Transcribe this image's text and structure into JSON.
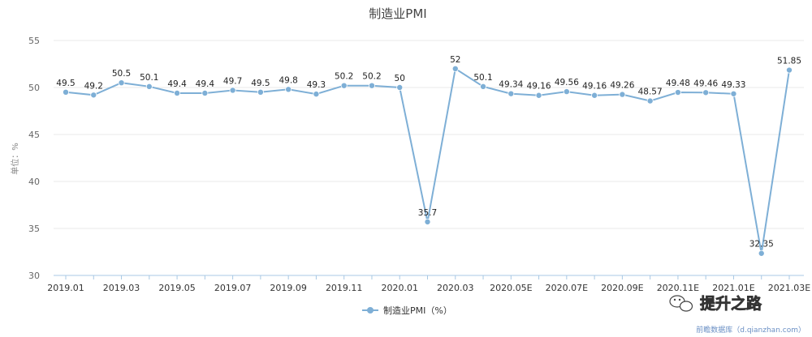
{
  "chart_data": {
    "type": "line",
    "title": "制造业PMI",
    "ylabel": "单位：%",
    "ylim": [
      30,
      55
    ],
    "yticks": [
      30,
      35,
      40,
      45,
      50,
      55
    ],
    "grid": true,
    "legend_position": "bottom",
    "x": [
      "2019.01",
      "2019.02",
      "2019.03",
      "2019.04",
      "2019.05",
      "2019.06",
      "2019.07",
      "2019.08",
      "2019.09",
      "2019.10",
      "2019.11",
      "2019.12",
      "2020.01",
      "2020.02",
      "2020.03",
      "2020.04",
      "2020.05E",
      "2020.06E",
      "2020.07E",
      "2020.08E",
      "2020.09E",
      "2020.10E",
      "2020.11E",
      "2020.12E",
      "2021.01E",
      "2021.02E",
      "2021.03E"
    ],
    "xtick_labels": [
      "2019.01",
      "",
      "2019.03",
      "",
      "2019.05",
      "",
      "2019.07",
      "",
      "2019.09",
      "",
      "2019.11",
      "",
      "2020.01",
      "",
      "2020.03",
      "",
      "2020.05E",
      "",
      "2020.07E",
      "",
      "2020.09E",
      "",
      "2020.11E",
      "",
      "2021.01E",
      "",
      "2021.03E"
    ],
    "series": [
      {
        "name": "制造业PMI（%）",
        "color": "#7eafd6",
        "values": [
          49.5,
          49.2,
          50.5,
          50.1,
          49.4,
          49.4,
          49.7,
          49.5,
          49.8,
          49.3,
          50.2,
          50.2,
          50,
          35.7,
          52,
          50.1,
          49.34,
          49.16,
          49.56,
          49.16,
          49.26,
          48.57,
          49.48,
          49.46,
          49.33,
          32.35,
          51.85
        ],
        "labels": [
          "49.5",
          "49.2",
          "50.5",
          "50.1",
          "49.4",
          "49.4",
          "49.7",
          "49.5",
          "49.8",
          "49.3",
          "50.2",
          "50.2",
          "50",
          "35.7",
          "52",
          "50.1",
          "49.34",
          "49.16",
          "49.56",
          "49.16",
          "49.26",
          "48.57",
          "49.48",
          "49.46",
          "49.33",
          "32.35",
          "51.85"
        ]
      }
    ]
  },
  "source": "前瞻数据库（d.qianzhan.com）",
  "watermark": "提升之路",
  "watermark_icon": "wechat-icon"
}
